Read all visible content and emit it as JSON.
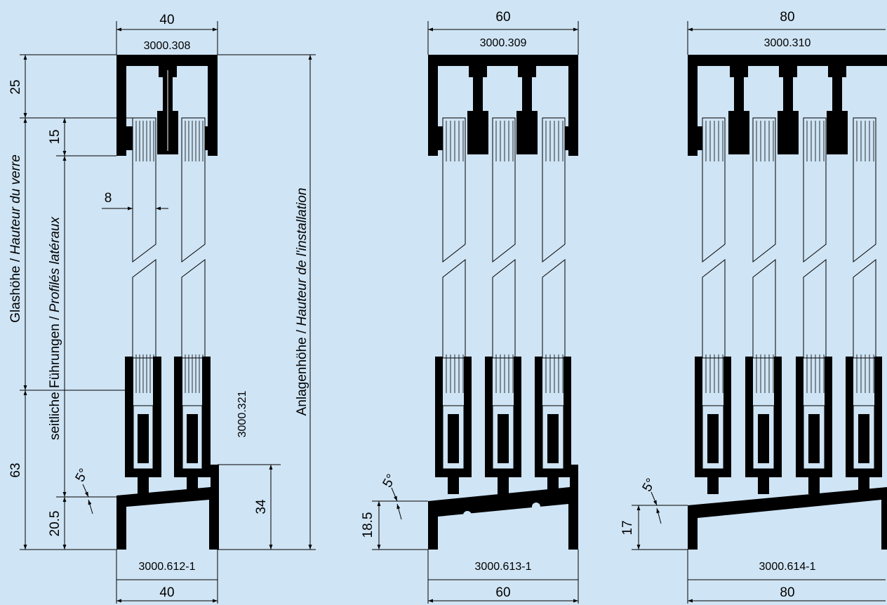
{
  "dimensions": {
    "a_top_width": "40",
    "a_height_top": "25",
    "a_overlap": "15",
    "a_glass_thickness": "8",
    "a_bottom_height": "63",
    "a_angle": "5°",
    "a_profile_height": "20.5",
    "a_side_height": "34",
    "a_bottom_width": "40",
    "b_top_width": "60",
    "b_angle": "5°",
    "b_profile_height": "18.5",
    "b_bottom_width": "60",
    "c_top_width": "80",
    "c_angle": "5°",
    "c_profile_height": "17",
    "c_bottom_width": "80"
  },
  "codes": {
    "a_top": "3000.308",
    "a_side": "3000.321",
    "a_bottom": "3000.612-1",
    "b_top": "3000.309",
    "b_bottom": "3000.613-1",
    "c_top": "3000.310",
    "c_bottom": "3000.614-1"
  },
  "labels": {
    "glass_height_de": "Glashöhe / ",
    "glass_height_fr": "Hauteur du verre",
    "side_guides_de": "seitliche Führungen / ",
    "side_guides_fr": "Profilés latéraux",
    "install_height_de": "Anlagenhöhe / ",
    "install_height_fr": "Hauteur de l'installation"
  },
  "colors": {
    "background": "#cfe4f4",
    "profile": "#000000"
  }
}
